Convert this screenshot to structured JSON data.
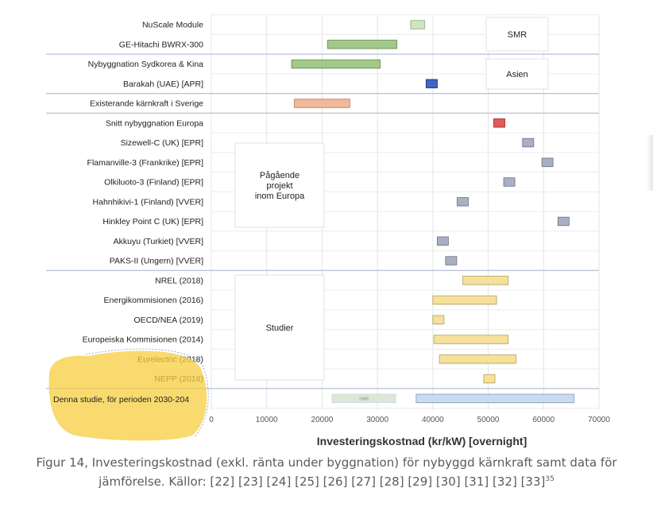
{
  "chart_data": {
    "type": "bar",
    "orientation": "horizontal-range",
    "title": "",
    "xlabel": "Investeringskostnad (kr/kW) [overnight]",
    "ylabel": "",
    "xlim": [
      0,
      70000
    ],
    "x_ticks": [
      "0",
      "10000",
      "20000",
      "30000",
      "40000",
      "50000",
      "60000",
      "70000"
    ],
    "grid": true,
    "categories": [
      "NuScale Module",
      "GE-Hitachi BWRX-300",
      "Nybyggnation Sydkorea & Kina",
      "Barakah (UAE) [APR]",
      "Existerande kärnkraft i Sverige",
      "Snitt nybyggnation Europa",
      "Sizewell-C (UK) [EPR]",
      "Flamanville-3 (Frankrike) [EPR]",
      "Olkiluoto-3 (Finland) [EPR]",
      "Hahnhikivi-1 (Finland) [VVER]",
      "Hinkley Point C (UK) [EPR]",
      "Akkuyu (Turkiet) [VVER]",
      "PAKS-II (Ungern) [VVER]",
      "NREL (2018)",
      "Energikommisionen (2016)",
      "OECD/NEA (2019)",
      "Europeiska Kommisionen (2014)",
      "Eurelectric (2018)",
      "NEPP (2018)",
      "Denna studie, för perioden 2030-204"
    ],
    "ranges": [
      [
        36000,
        38500
      ],
      [
        21000,
        33500
      ],
      [
        14500,
        30500
      ],
      [
        38800,
        40800
      ],
      [
        15000,
        25000
      ],
      [
        51000,
        53000
      ],
      [
        56200,
        58200
      ],
      [
        59700,
        61700
      ],
      [
        52800,
        54800
      ],
      [
        44400,
        46400
      ],
      [
        62600,
        64600
      ],
      [
        40800,
        42800
      ],
      [
        42300,
        44300
      ],
      [
        45400,
        53600
      ],
      [
        40000,
        51500
      ],
      [
        40000,
        42000
      ],
      [
        40200,
        53600
      ],
      [
        41200,
        55000
      ],
      [
        49200,
        51200
      ],
      [
        37000,
        65500
      ]
    ],
    "extra_range": {
      "row": 19,
      "range": [
        21800,
        33300
      ],
      "label": "SMR"
    },
    "colors": {
      "smr": "#a3c98a",
      "smr_light": "#cfe6c2",
      "asia_light": "#a3c98a",
      "asia_dark": "#3f66c2",
      "sweden": "#f2b89a",
      "europe_avg": "#e05c5c",
      "europe_projects": "#a9b0c4",
      "studies": "#f6e19b",
      "study_ours": "#c9dbf2",
      "study_ours_smr": "#dce8d4"
    },
    "group_labels": [
      {
        "name": "smr",
        "text": "SMR"
      },
      {
        "name": "asia",
        "text": "Asien"
      },
      {
        "name": "ongoing",
        "lines": [
          "Pågående",
          "projekt",
          "inom Europa"
        ]
      },
      {
        "name": "studies",
        "text": "Studier"
      }
    ]
  },
  "caption": {
    "line1": "Figur 14, Investeringskostnad (exkl. ränta under byggnation) för nybyggd kärnkraft samt data för",
    "line2": "jämförelse. Källor: [22] [23] [24] [25] [26] [27] [28] [29] [30] [31] [32] [33]",
    "footnote": "35"
  }
}
